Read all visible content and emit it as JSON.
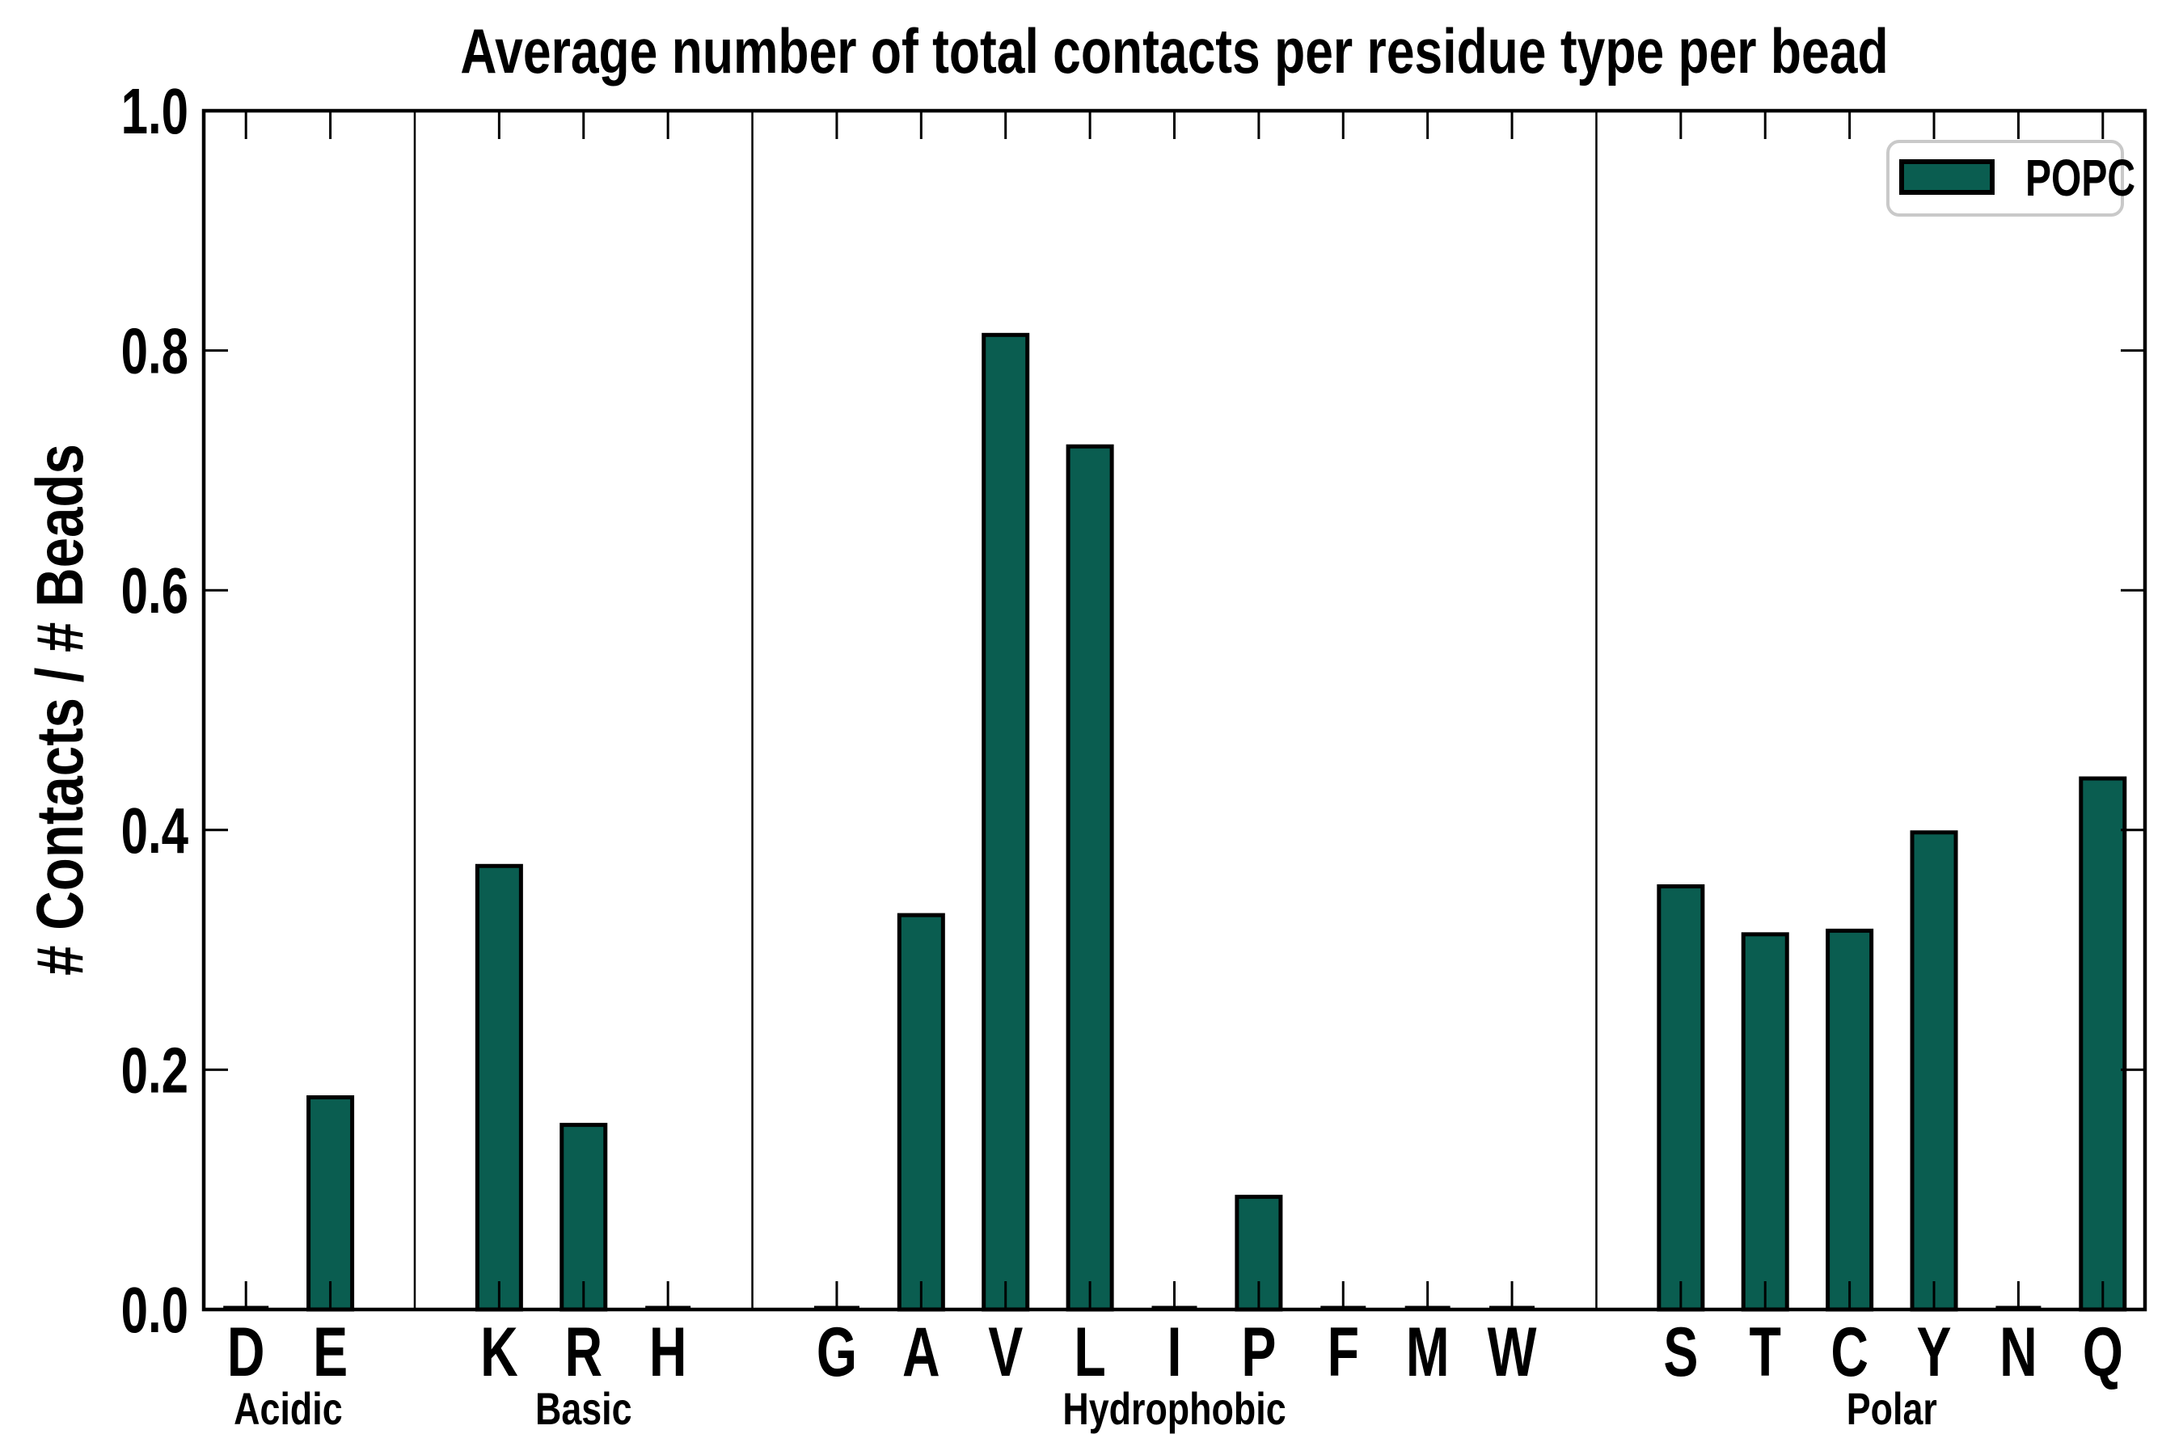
{
  "colors": {
    "bar_fill": "#0a5d50",
    "bar_edge": "#000000",
    "axis": "#000000",
    "separator": "#000000",
    "legend_border": "#c9c9c9",
    "background": "#ffffff"
  },
  "chart_data": {
    "type": "bar",
    "title": "Average number of total contacts per residue type per bead",
    "xlabel": "",
    "ylabel": "# Contacts / # Beads",
    "ylim": [
      0.0,
      1.0
    ],
    "yticks": [
      0.0,
      0.2,
      0.4,
      0.6,
      0.8,
      1.0
    ],
    "grid": false,
    "legend": {
      "entries": [
        "POPC"
      ],
      "position": "upper right"
    },
    "series_name": "POPC",
    "groups": [
      {
        "label": "Acidic",
        "categories": [
          "D",
          "E"
        ],
        "values": [
          0.002,
          0.177
        ]
      },
      {
        "label": "Basic",
        "categories": [
          "K",
          "R",
          "H"
        ],
        "values": [
          0.37,
          0.154,
          0.002
        ]
      },
      {
        "label": "Hydrophobic",
        "categories": [
          "G",
          "A",
          "V",
          "L",
          "I",
          "P",
          "F",
          "M",
          "W"
        ],
        "values": [
          0.002,
          0.329,
          0.813,
          0.72,
          0.002,
          0.094,
          0.002,
          0.002,
          0.002
        ]
      },
      {
        "label": "Polar",
        "categories": [
          "S",
          "T",
          "C",
          "Y",
          "N",
          "Q"
        ],
        "values": [
          0.353,
          0.313,
          0.316,
          0.398,
          0.002,
          0.443
        ]
      }
    ]
  }
}
